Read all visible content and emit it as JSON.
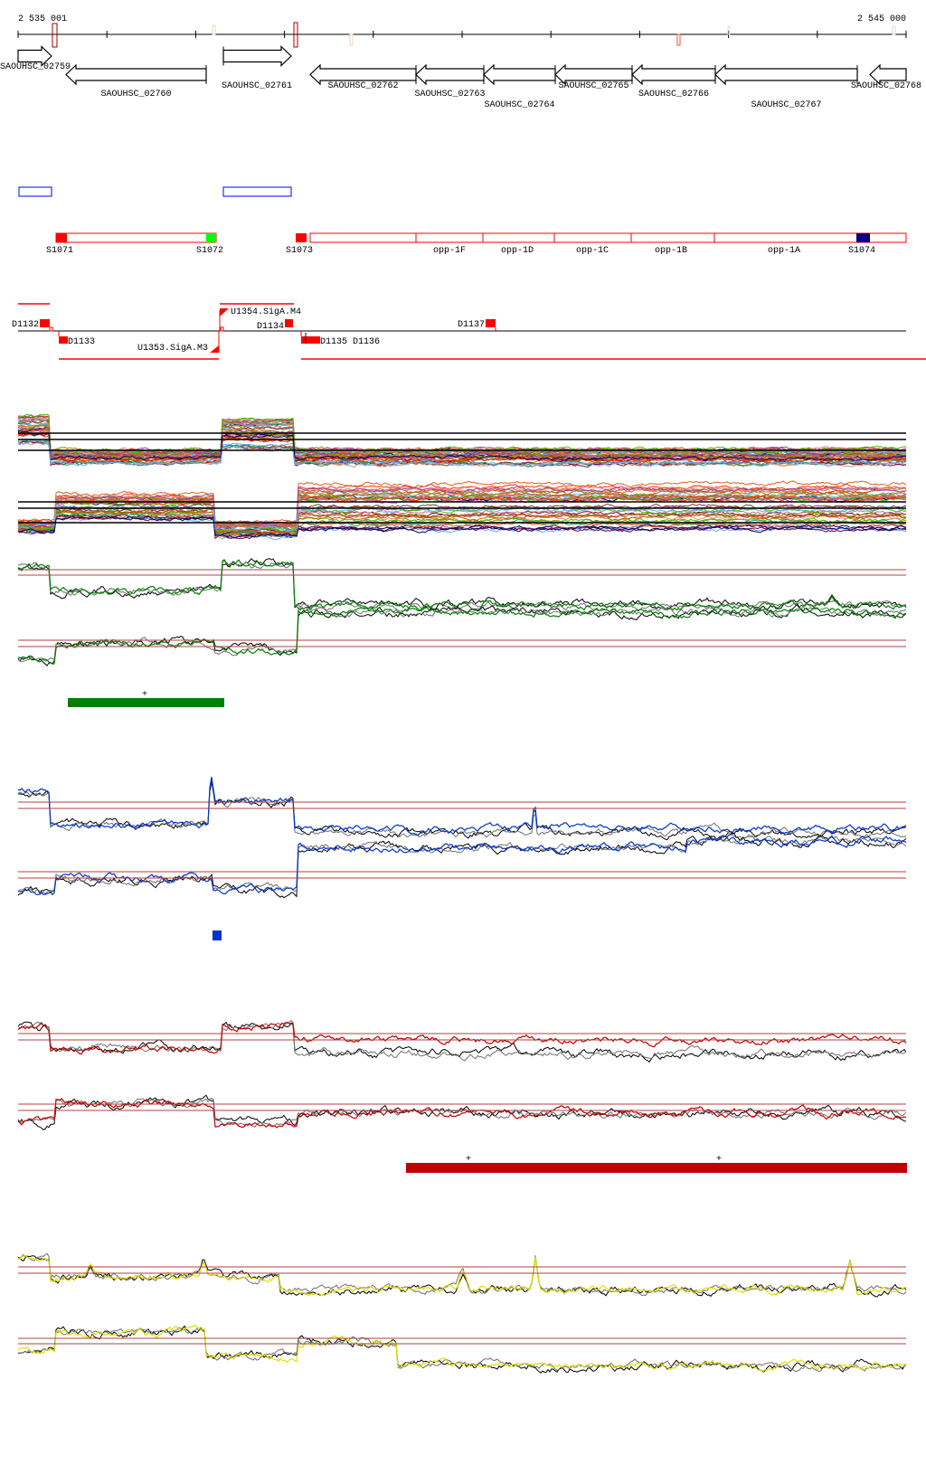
{
  "axis": {
    "start_label": "2 535 001",
    "end_label": "2 545 000"
  },
  "genes": [
    {
      "name": "SAOUHSC_02759",
      "strand": "+"
    },
    {
      "name": "SAOUHSC_02760",
      "strand": "-"
    },
    {
      "name": "SAOUHSC_02761",
      "strand": "+"
    },
    {
      "name": "SAOUHSC_02762",
      "strand": "-"
    },
    {
      "name": "SAOUHSC_02763",
      "strand": "-"
    },
    {
      "name": "SAOUHSC_02764",
      "strand": "-"
    },
    {
      "name": "SAOUHSC_02765",
      "strand": "-"
    },
    {
      "name": "SAOUHSC_02766",
      "strand": "-"
    },
    {
      "name": "SAOUHSC_02767",
      "strand": "-"
    },
    {
      "name": "SAOUHSC_02768",
      "strand": "-"
    }
  ],
  "segments": [
    {
      "label": "S1071",
      "color": "#ff0000"
    },
    {
      "label": "S1072",
      "color": "#00ff00"
    },
    {
      "label": "S1073",
      "color": "#ff0000"
    },
    {
      "label": "opp-1F"
    },
    {
      "label": "opp-1D"
    },
    {
      "label": "opp-1C"
    },
    {
      "label": "opp-1B"
    },
    {
      "label": "opp-1A"
    },
    {
      "label": "S1074",
      "color": "#000080"
    }
  ],
  "features": [
    {
      "label": "D1132"
    },
    {
      "label": "D1133"
    },
    {
      "label": "U1354.SigA.M4"
    },
    {
      "label": "U1353.SigA.M3"
    },
    {
      "label": "D1134"
    },
    {
      "label": "D1135"
    },
    {
      "label": "D1136"
    },
    {
      "label": "D1137"
    }
  ],
  "tracks": {
    "green": {
      "color": "#008000",
      "marker": "+"
    },
    "blue": {
      "color": "#0033cc"
    },
    "red": {
      "color": "#c00000",
      "markers": [
        "+",
        "+"
      ]
    },
    "yellow": {
      "color": "#e0e000"
    }
  }
}
